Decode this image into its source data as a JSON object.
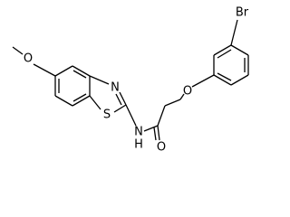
{
  "atoms": [
    {
      "label": "O"
    },
    {
      "label": "S"
    },
    {
      "label": "N"
    },
    {
      "label": "N"
    },
    {
      "label": "H"
    },
    {
      "label": "O"
    },
    {
      "label": "O"
    },
    {
      "label": "Br"
    }
  ]
}
